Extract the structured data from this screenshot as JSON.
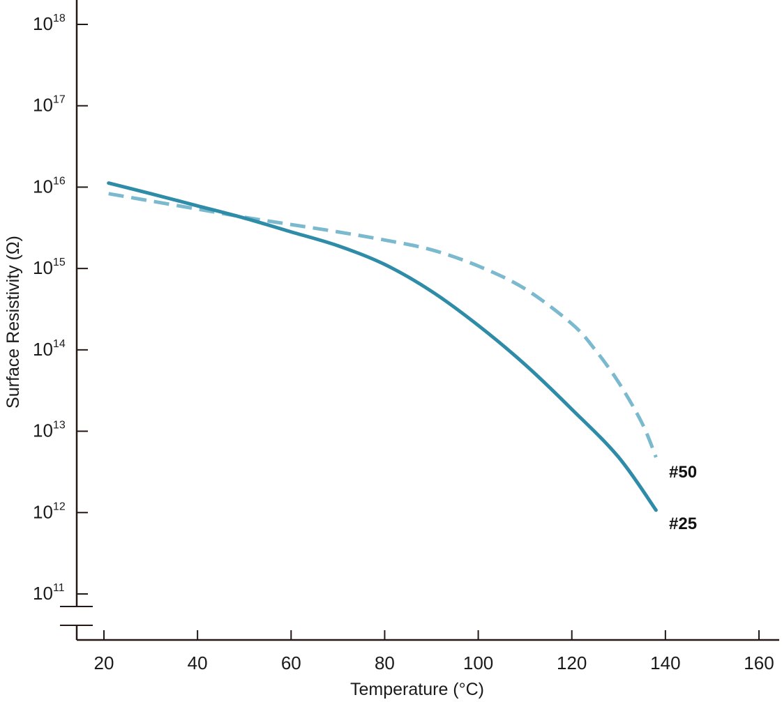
{
  "chart_data": {
    "type": "line",
    "xlabel": "Temperature (°C)",
    "ylabel": "Surface Resistivity (Ω)",
    "x_ticks": [
      "20",
      "40",
      "60",
      "80",
      "100",
      "120",
      "140",
      "160"
    ],
    "y_ticks": [
      {
        "base": "10",
        "exp": "11"
      },
      {
        "base": "10",
        "exp": "12"
      },
      {
        "base": "10",
        "exp": "13"
      },
      {
        "base": "10",
        "exp": "14"
      },
      {
        "base": "10",
        "exp": "15"
      },
      {
        "base": "10",
        "exp": "16"
      },
      {
        "base": "10",
        "exp": "17"
      },
      {
        "base": "10",
        "exp": "18"
      }
    ],
    "xlim": [
      20,
      160
    ],
    "ylim_log10": [
      11,
      18
    ],
    "y_scale": "log",
    "axis_break": "y-axis, below 10^11",
    "grid": false,
    "series": [
      {
        "name": "#25",
        "color": "#2e8ca8",
        "style": "solid",
        "x": [
          21,
          30,
          40,
          50,
          60,
          70,
          80,
          90,
          100,
          110,
          120,
          130,
          138
        ],
        "log10_y": [
          16.05,
          15.92,
          15.77,
          15.62,
          15.45,
          15.28,
          15.05,
          14.72,
          14.3,
          13.82,
          13.27,
          12.68,
          12.03
        ]
      },
      {
        "name": "#50",
        "color": "#7bb9cf",
        "style": "dashed",
        "x": [
          21,
          30,
          40,
          50,
          60,
          70,
          80,
          90,
          100,
          110,
          120,
          125,
          130,
          135,
          138
        ],
        "log10_y": [
          15.92,
          15.83,
          15.73,
          15.63,
          15.54,
          15.45,
          15.35,
          15.23,
          15.03,
          14.75,
          14.32,
          14.0,
          13.6,
          13.1,
          12.68
        ]
      }
    ]
  }
}
